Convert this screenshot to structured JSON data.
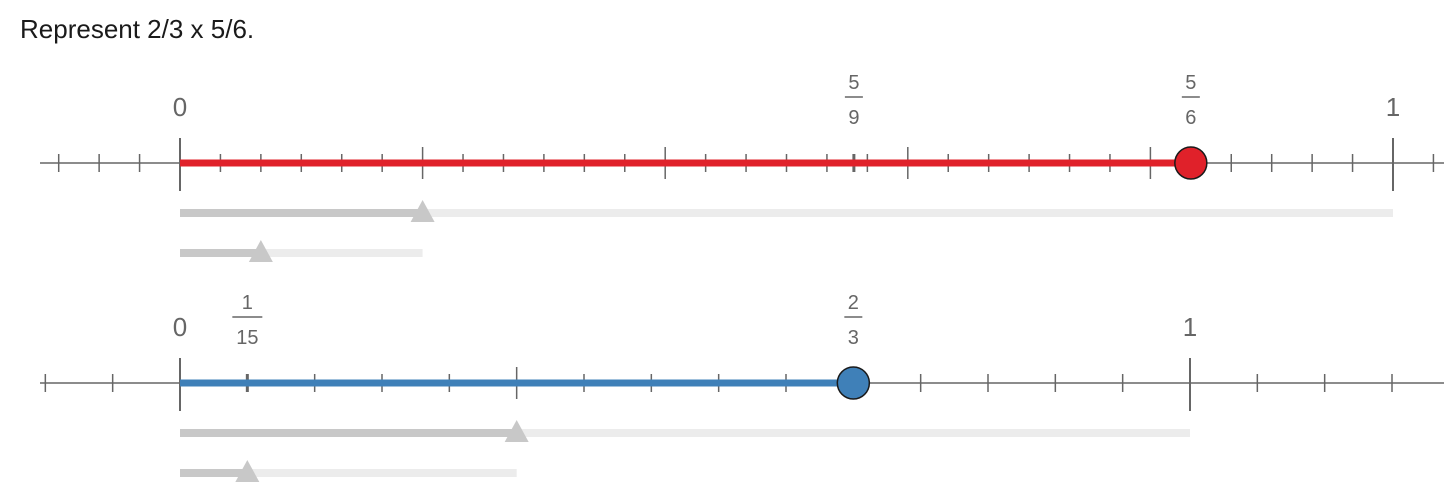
{
  "prompt": "Represent 2/3 x 5/6.",
  "colors": {
    "axis": "#666666",
    "red": "#e0212a",
    "blue": "#3f80b8",
    "slider_fill": "#c8c8c8",
    "slider_track": "#ececec",
    "thumb": "#c8c8c8"
  },
  "number_lines": [
    {
      "name": "top",
      "domain": [
        -0.2,
        1.07
      ],
      "minor_step": 0.0333333,
      "major_step": 0.2,
      "point_value": 0.8333333,
      "point_color": "red",
      "labels": [
        {
          "value": 0,
          "text": "0",
          "type": "int"
        },
        {
          "value": 1,
          "text": "1",
          "type": "int"
        },
        {
          "value": 0.5555556,
          "num": "5",
          "den": "9",
          "type": "frac"
        },
        {
          "value": 0.8333333,
          "num": "5",
          "den": "6",
          "type": "frac"
        }
      ],
      "sliders": [
        {
          "name": "top-slider-1",
          "value": 0.2,
          "max": 1
        },
        {
          "name": "top-slider-2",
          "value": 0.0666667,
          "max": 0.2
        }
      ]
    },
    {
      "name": "bottom",
      "domain": [
        -0.2,
        1.2
      ],
      "minor_step": 0.0666667,
      "major_step": 0.3333333,
      "point_value": 0.6666667,
      "point_color": "blue",
      "labels": [
        {
          "value": 0,
          "text": "0",
          "type": "int"
        },
        {
          "value": 1,
          "text": "1",
          "type": "int"
        },
        {
          "value": 0.0666667,
          "num": "1",
          "den": "15",
          "type": "frac"
        },
        {
          "value": 0.6666667,
          "num": "2",
          "den": "3",
          "type": "frac"
        }
      ],
      "sliders": [
        {
          "name": "bottom-slider-1",
          "value": 0.3333333,
          "max": 1
        },
        {
          "name": "bottom-slider-2",
          "value": 0.0666667,
          "max": 0.3333333
        }
      ]
    }
  ]
}
